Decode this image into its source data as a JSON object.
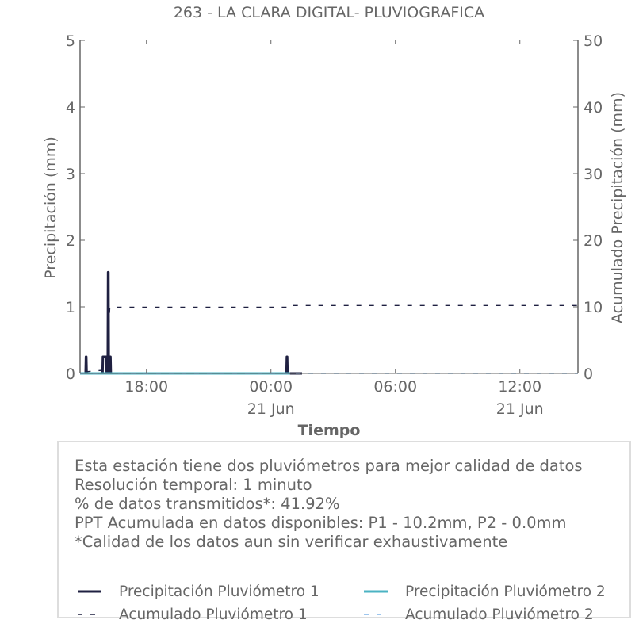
{
  "chart_data": {
    "type": "line",
    "title": "263 - LA CLARA DIGITAL- PLUVIOGRAFICA",
    "xlabel": "Tiempo",
    "ylabel": "Precipitación (mm)",
    "y2label": "Acumulado Precipitación (mm)",
    "x_start": "2024-06-20 14:48",
    "x_end": "2024-06-21 14:48",
    "xticks": [
      {
        "time": "2024-06-20 18:00",
        "label": "18:00",
        "sublabel": ""
      },
      {
        "time": "2024-06-21 00:00",
        "label": "00:00",
        "sublabel": "21 Jun"
      },
      {
        "time": "2024-06-21 06:00",
        "label": "06:00",
        "sublabel": ""
      },
      {
        "time": "2024-06-21 12:00",
        "label": "12:00",
        "sublabel": "21 Jun"
      }
    ],
    "ylim": [
      0,
      5
    ],
    "yticks": [
      0,
      1,
      2,
      3,
      4,
      5
    ],
    "y2lim": [
      0,
      50
    ],
    "y2ticks": [
      0,
      10,
      20,
      30,
      40,
      50
    ],
    "legend_location": "bottom",
    "series": [
      {
        "name": "Precipitación Pluviómetro 1",
        "axis": "left",
        "style": "solid",
        "color": "#1f2041",
        "points": [
          [
            "2024-06-20 14:48",
            0.0
          ],
          [
            "2024-06-20 15:04",
            0.0
          ],
          [
            "2024-06-20 15:05",
            0.25
          ],
          [
            "2024-06-20 15:06",
            0.25
          ],
          [
            "2024-06-20 15:07",
            0.0
          ],
          [
            "2024-06-20 15:53",
            0.0
          ],
          [
            "2024-06-20 15:54",
            0.25
          ],
          [
            "2024-06-20 16:04",
            0.25
          ],
          [
            "2024-06-20 16:05",
            0.0
          ],
          [
            "2024-06-20 16:08",
            0.0
          ],
          [
            "2024-06-20 16:09",
            1.52
          ],
          [
            "2024-06-20 16:10",
            1.52
          ],
          [
            "2024-06-20 16:11",
            0.0
          ],
          [
            "2024-06-20 16:13",
            0.0
          ],
          [
            "2024-06-20 16:14",
            0.25
          ],
          [
            "2024-06-20 16:16",
            0.25
          ],
          [
            "2024-06-20 16:17",
            0.0
          ],
          [
            "2024-06-21 00:45",
            0.0
          ],
          [
            "2024-06-21 00:46",
            0.25
          ],
          [
            "2024-06-21 00:47",
            0.25
          ],
          [
            "2024-06-21 00:48",
            0.0
          ],
          [
            "2024-06-21 01:30",
            0.0
          ]
        ]
      },
      {
        "name": "Precipitación Pluviómetro 2",
        "axis": "left",
        "style": "solid",
        "color": "#4bb3c3",
        "points": [
          [
            "2024-06-20 14:48",
            0.0
          ],
          [
            "2024-06-21 00:55",
            0.0
          ]
        ]
      },
      {
        "name": "Acumulado Pluviómetro 1",
        "axis": "right",
        "style": "dashed",
        "color": "#1f2041",
        "points": [
          [
            "2024-06-20 15:05",
            0.25
          ],
          [
            "2024-06-20 15:58",
            0.5
          ],
          [
            "2024-06-20 16:05",
            2.0
          ],
          [
            "2024-06-20 16:09",
            3.5
          ],
          [
            "2024-06-20 16:10",
            5.0
          ],
          [
            "2024-06-20 16:11",
            7.0
          ],
          [
            "2024-06-20 16:14",
            9.95
          ],
          [
            "2024-06-21 00:46",
            9.95
          ],
          [
            "2024-06-21 00:47",
            10.2
          ],
          [
            "2024-06-21 14:48",
            10.2
          ]
        ]
      },
      {
        "name": "Acumulado Pluviómetro 2",
        "axis": "right",
        "style": "dashed",
        "color": "#7fb3e8",
        "points": [
          [
            "2024-06-20 14:48",
            0.0
          ],
          [
            "2024-06-21 14:48",
            0.0
          ]
        ]
      }
    ]
  },
  "info": {
    "lines": [
      "Esta estación tiene dos pluviómetros para mejor calidad de datos",
      "Resolución temporal: 1 minuto",
      "% de datos transmitidos*: 41.92%",
      "PPT Acumulada en datos disponibles: P1 - 10.2mm, P2 - 0.0mm",
      "*Calidad de los datos aun sin verificar exhaustivamente"
    ]
  },
  "legend": [
    {
      "label": "Precipitación Pluviómetro 1",
      "style": "solid",
      "color": "#1f2041"
    },
    {
      "label": "Precipitación Pluviómetro 2",
      "style": "solid",
      "color": "#4bb3c3"
    },
    {
      "label": "Acumulado Pluviómetro 1",
      "style": "dashed",
      "color": "#1f2041"
    },
    {
      "label": "Acumulado Pluviómetro 2",
      "style": "dashed",
      "color": "#7fb3e8"
    }
  ],
  "colors": {
    "axis": "#666666",
    "frame": "#dddddd"
  }
}
